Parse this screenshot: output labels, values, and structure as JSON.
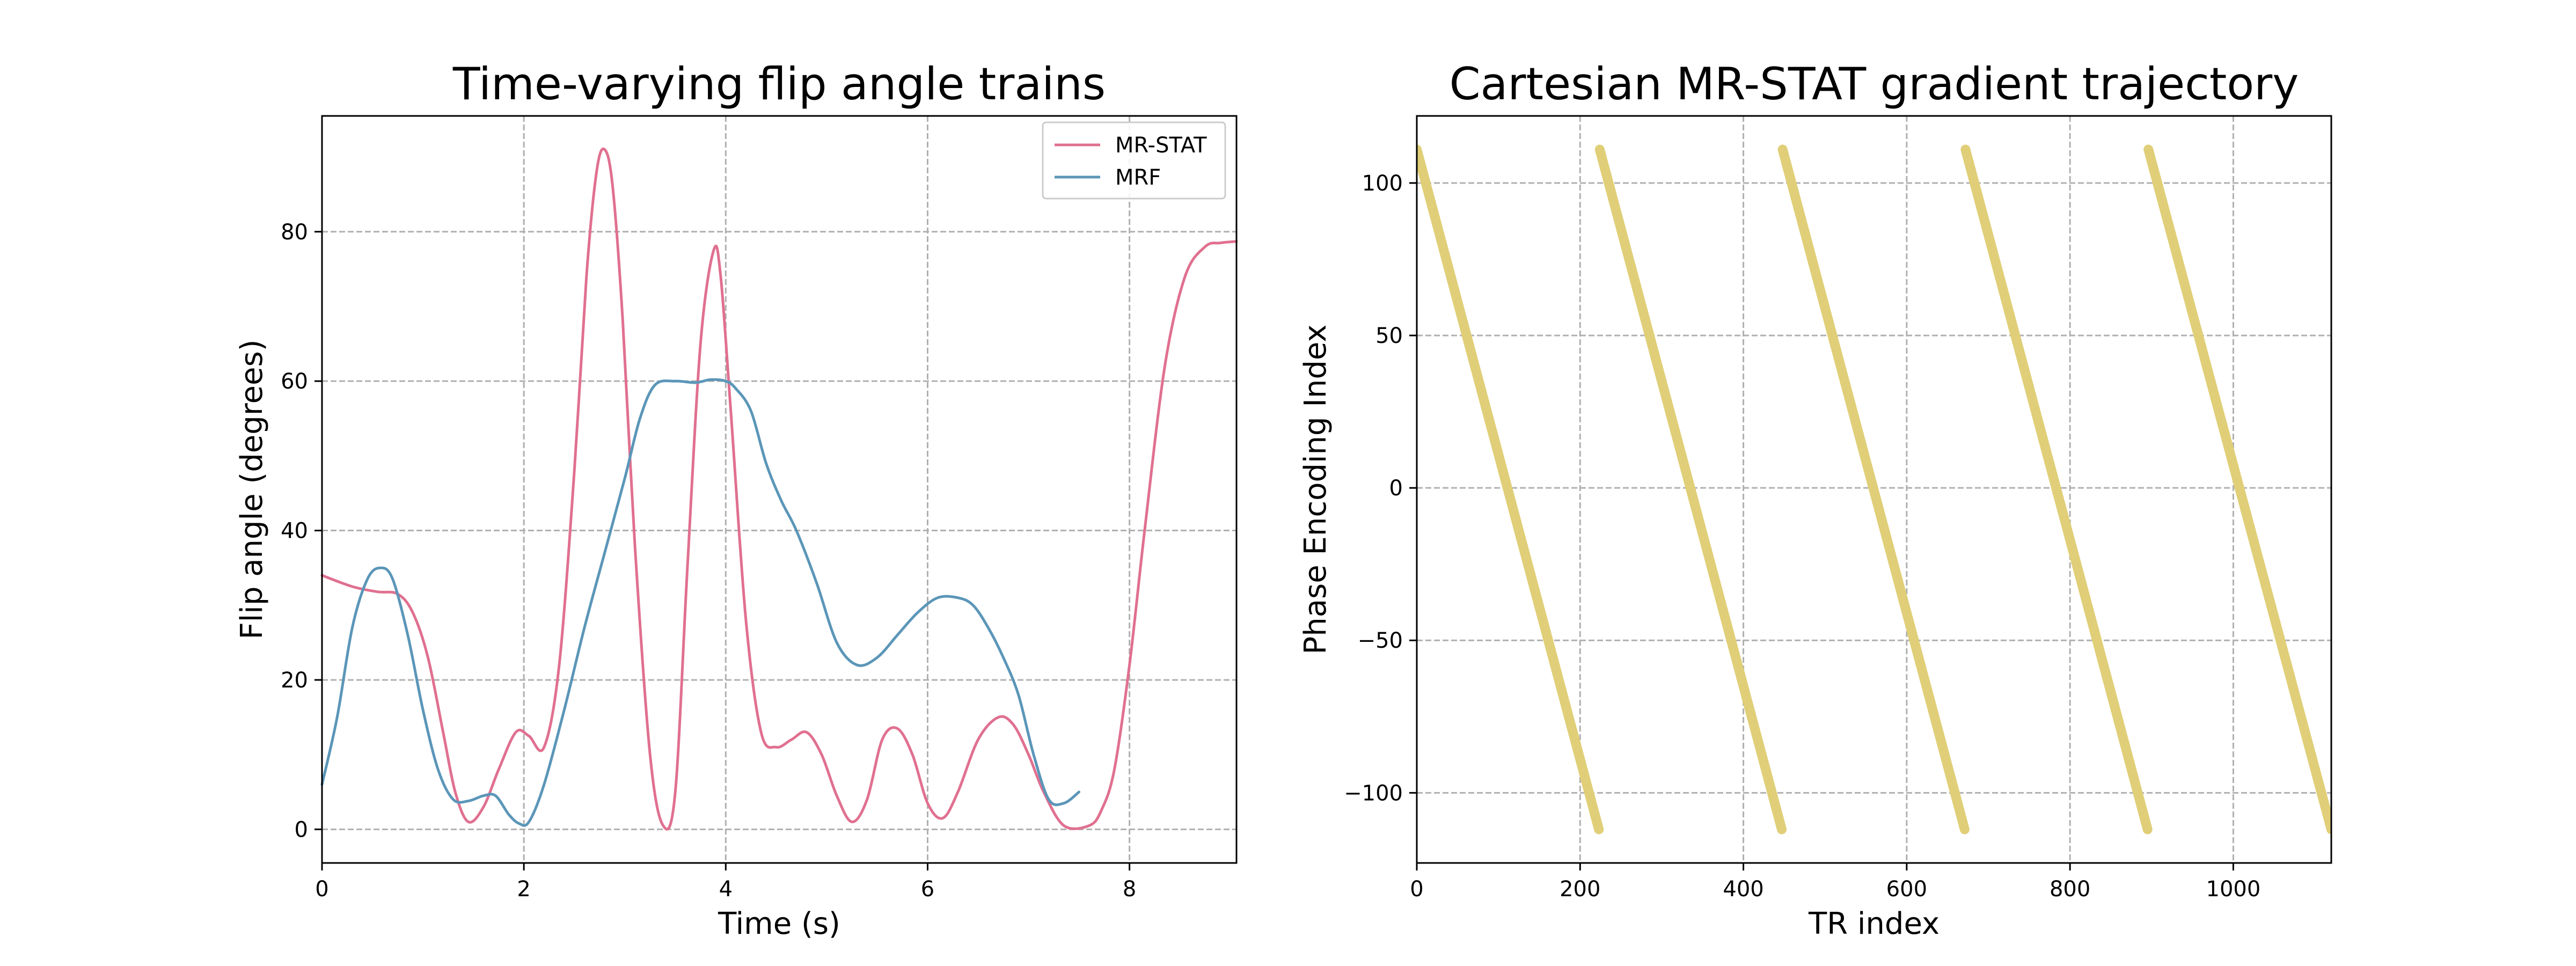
{
  "chart_data": [
    {
      "type": "line",
      "title": "Time-varying flip angle trains",
      "xlabel": "Time (s)",
      "ylabel": "Flip angle (degrees)",
      "xlim": [
        0,
        9.06
      ],
      "ylim": [
        -4.5,
        95.5
      ],
      "xticks": [
        0,
        2,
        4,
        6,
        8
      ],
      "yticks": [
        0,
        20,
        40,
        60,
        80
      ],
      "grid": true,
      "legend_position": "top-right",
      "series": [
        {
          "name": "MR-STAT",
          "color": "#e07090",
          "x": [
            0,
            0.3,
            0.55,
            0.75,
            0.9,
            1.05,
            1.2,
            1.32,
            1.45,
            1.6,
            1.75,
            1.92,
            2.05,
            2.2,
            2.35,
            2.5,
            2.62,
            2.72,
            2.8,
            2.88,
            2.98,
            3.1,
            3.25,
            3.38,
            3.5,
            3.62,
            3.75,
            3.88,
            3.95,
            4.05,
            4.2,
            4.35,
            4.5,
            4.65,
            4.8,
            4.95,
            5.1,
            5.25,
            5.4,
            5.55,
            5.7,
            5.85,
            6.0,
            6.15,
            6.3,
            6.5,
            6.7,
            6.85,
            7.0,
            7.15,
            7.35,
            7.6,
            7.72,
            7.85,
            8.0,
            8.15,
            8.35,
            8.55,
            8.75,
            8.9,
            9.06
          ],
          "y": [
            34,
            32.5,
            31.8,
            31.5,
            29,
            23,
            13,
            5,
            1,
            3,
            8,
            13,
            12.5,
            11,
            22,
            48,
            74,
            88,
            91,
            86,
            68,
            38,
            10,
            0.5,
            5,
            35,
            65,
            77.5,
            74,
            56,
            28,
            13,
            11,
            12,
            13,
            10,
            4.5,
            1,
            4,
            12,
            13.5,
            10,
            3.5,
            1.5,
            5,
            12,
            15,
            14,
            10,
            5,
            0.5,
            0.5,
            2.5,
            8,
            22,
            40,
            62,
            74,
            78,
            78.5,
            78.7
          ]
        },
        {
          "name": "MRF",
          "color": "#5b96b8",
          "x": [
            0,
            0.15,
            0.3,
            0.45,
            0.58,
            0.7,
            0.85,
            1.0,
            1.15,
            1.3,
            1.45,
            1.6,
            1.72,
            1.85,
            1.95,
            2.05,
            2.2,
            2.4,
            2.6,
            2.8,
            3.0,
            3.15,
            3.3,
            3.5,
            3.7,
            3.85,
            4.0,
            4.1,
            4.25,
            4.4,
            4.55,
            4.7,
            4.9,
            5.1,
            5.3,
            5.5,
            5.7,
            5.9,
            6.1,
            6.3,
            6.45,
            6.6,
            6.75,
            6.9,
            7.05,
            7.2,
            7.35,
            7.5
          ],
          "y": [
            6,
            15,
            27,
            33.5,
            35,
            33.5,
            26,
            16,
            8,
            4,
            3.8,
            4.5,
            4.5,
            2,
            0.8,
            1,
            6,
            16,
            27,
            37,
            47,
            55,
            59.5,
            60,
            59.8,
            60.2,
            60,
            59,
            56,
            49,
            44,
            40,
            33,
            25,
            22,
            23,
            26,
            29,
            31,
            31,
            30,
            27,
            23,
            18,
            10,
            4,
            3.5,
            5
          ]
        }
      ]
    },
    {
      "type": "line",
      "title": "Cartesian MR-STAT gradient trajectory",
      "xlabel": "TR index",
      "ylabel": "Phase Encoding Index",
      "xlim": [
        0,
        1120
      ],
      "ylim": [
        -123,
        122
      ],
      "xticks": [
        0,
        200,
        400,
        600,
        800,
        1000
      ],
      "yticks": [
        100,
        50,
        0,
        -50,
        -100
      ],
      "ytick_labels": [
        "100",
        "50",
        "0",
        "−50",
        "−100"
      ],
      "grid": true,
      "series": [
        {
          "name": "Phase encoding",
          "color": "#e0cf78",
          "segments": [
            {
              "x": [
                0,
                223
              ],
              "y": [
                111,
                -112
              ]
            },
            {
              "x": [
                224,
                447
              ],
              "y": [
                111,
                -112
              ]
            },
            {
              "x": [
                448,
                671
              ],
              "y": [
                111,
                -112
              ]
            },
            {
              "x": [
                672,
                895
              ],
              "y": [
                111,
                -112
              ]
            },
            {
              "x": [
                896,
                1120
              ],
              "y": [
                111,
                -112
              ]
            }
          ]
        }
      ]
    }
  ]
}
